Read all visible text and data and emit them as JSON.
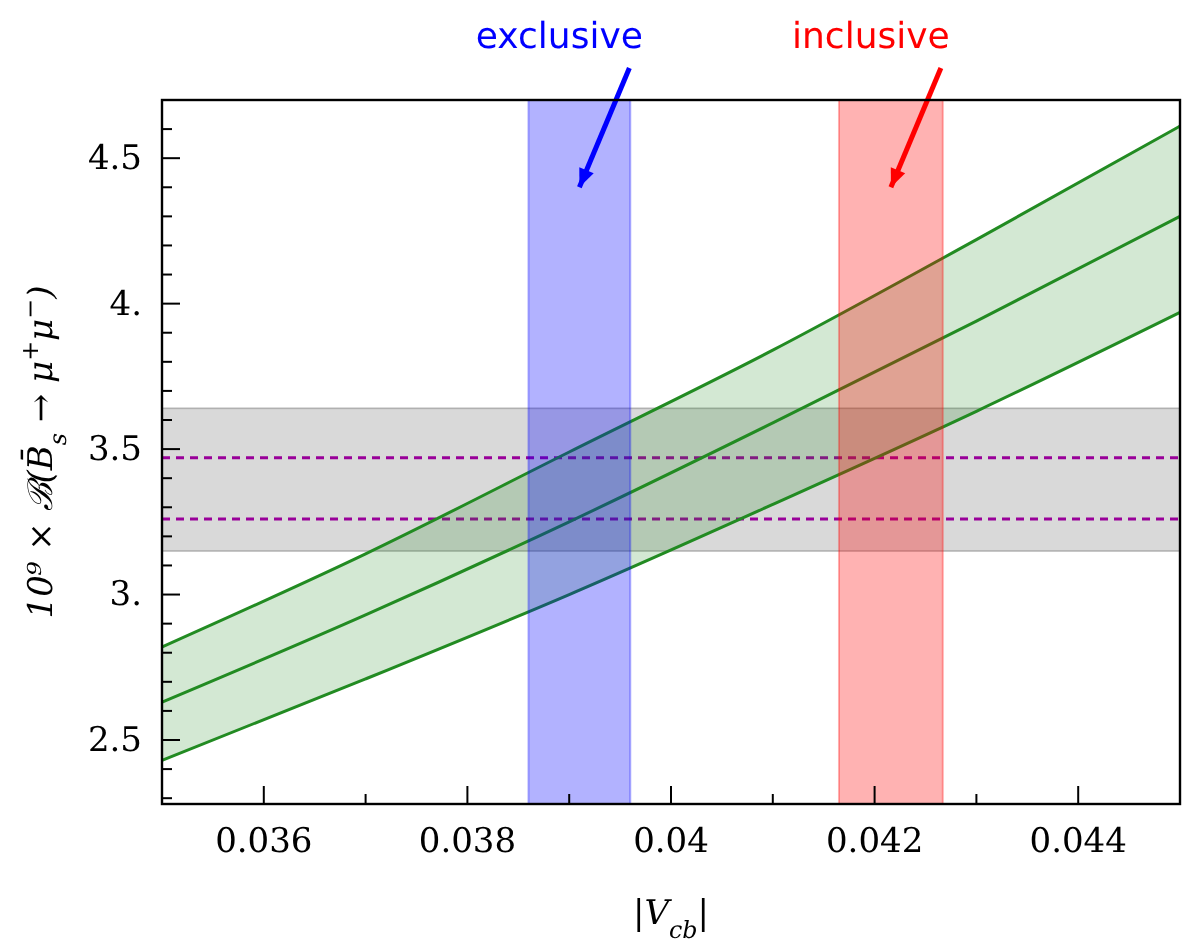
{
  "chart_data": {
    "type": "line",
    "xlabel": "|V$_{cb}$|",
    "ylabel": "10⁹ × ℬ(B̄$_{s}$ → μ$^{+}$μ$^{−}$)",
    "x": [
      0.035,
      0.037,
      0.039,
      0.041,
      0.043,
      0.045
    ],
    "series": [
      {
        "color": "#228b22",
        "values": [
          2.63,
          2.93,
          3.25,
          3.59,
          3.94,
          4.3
        ],
        "lower": [
          2.43,
          2.71,
          3.0,
          3.31,
          3.63,
          3.97
        ],
        "upper": [
          2.82,
          3.14,
          3.49,
          3.84,
          4.22,
          4.61
        ]
      },
      {
        "color": "#228b22",
        "values": [
          2.43,
          2.71,
          3.0,
          3.31,
          3.63,
          3.97
        ]
      },
      {
        "color": "#228b22",
        "values": [
          2.82,
          3.14,
          3.49,
          3.84,
          4.22,
          4.61
        ]
      }
    ],
    "xlim": [
      0.035,
      0.045
    ],
    "ylim": [
      2.28,
      4.7
    ],
    "xticks": [
      {
        "value": 0.035,
        "label": null
      },
      0.036,
      {
        "value": 0.037,
        "label": null
      },
      0.038,
      {
        "value": 0.039,
        "label": null
      },
      {
        "value": 0.04,
        "label": "0.04"
      },
      {
        "value": 0.041,
        "label": null
      },
      0.042,
      {
        "value": 0.043,
        "label": null
      },
      0.044,
      {
        "value": 0.045,
        "label": null
      }
    ],
    "yticks": [
      {
        "value": 2.3,
        "label": null
      },
      {
        "value": 2.4,
        "label": null
      },
      2.5,
      {
        "value": 2.6,
        "label": null
      },
      {
        "value": 2.7,
        "label": null
      },
      {
        "value": 2.8,
        "label": null
      },
      {
        "value": 2.9,
        "label": null
      },
      {
        "value": 3,
        "label": "3."
      },
      {
        "value": 3.1,
        "label": null
      },
      {
        "value": 3.2,
        "label": null
      },
      {
        "value": 3.3,
        "label": null
      },
      {
        "value": 3.4,
        "label": null
      },
      3.5,
      {
        "value": 3.6,
        "label": null
      },
      {
        "value": 3.7,
        "label": null
      },
      {
        "value": 3.8,
        "label": null
      },
      {
        "value": 3.9,
        "label": null
      },
      {
        "value": 4,
        "label": "4."
      },
      {
        "value": 4.1,
        "label": null
      },
      {
        "value": 4.2,
        "label": null
      },
      {
        "value": 4.3,
        "label": null
      },
      {
        "value": 4.4,
        "label": null
      },
      4.5,
      {
        "value": 4.6,
        "label": null
      }
    ],
    "bands": [
      {
        "axis": "y",
        "from": 3.15,
        "to": 3.64,
        "color": "#d9d9d9"
      },
      {
        "axis": "x",
        "from": 0.0386,
        "to": 0.0396,
        "label": "exclusive",
        "color": "#0000ff"
      },
      {
        "axis": "x",
        "from": 0.04165,
        "to": 0.04267,
        "label": "inclusive",
        "color": "#ff0000"
      }
    ],
    "ref_lines": [
      {
        "axis": "y",
        "value": 3.47,
        "color": "#990099",
        "line_style": "dashed"
      },
      {
        "axis": "y",
        "value": 3.26,
        "color": "#990099",
        "line_style": "dashed"
      }
    ]
  }
}
